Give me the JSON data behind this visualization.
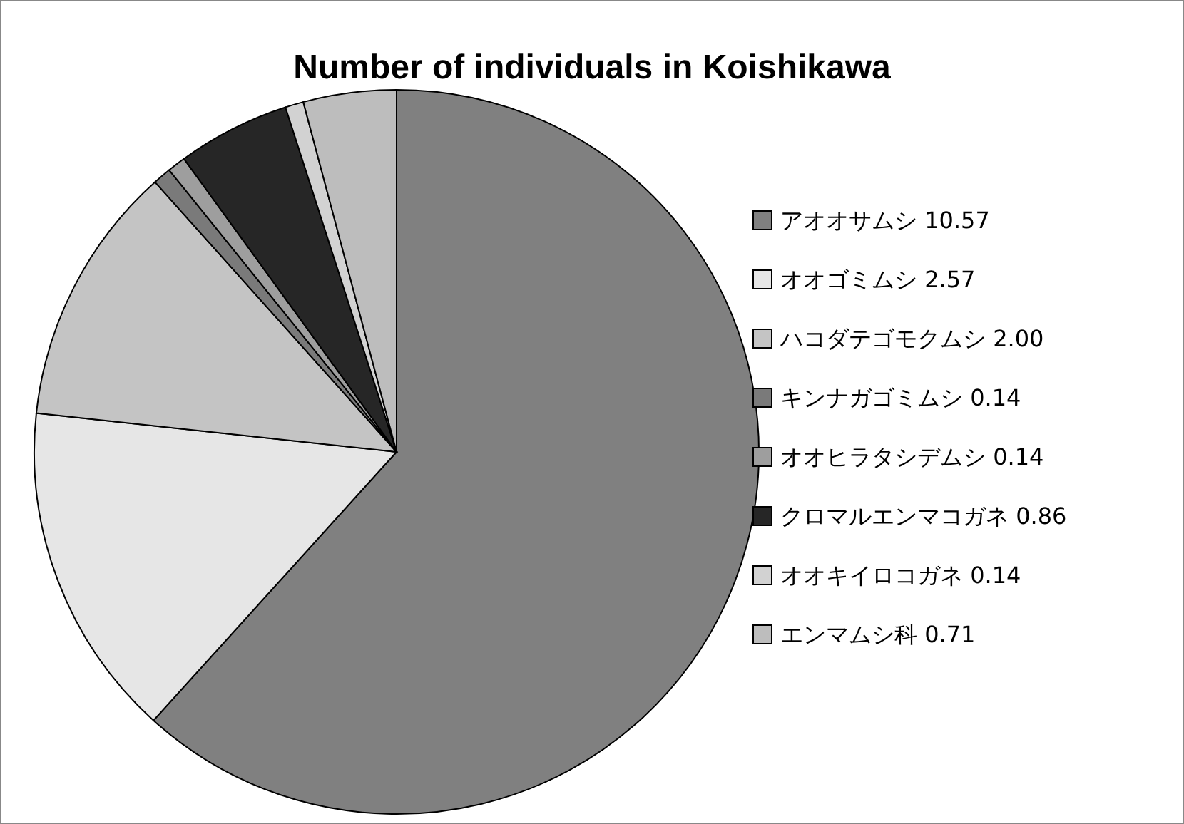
{
  "chart_data": {
    "type": "pie",
    "title": "Number of individuals in Koishikawa",
    "categories": [
      "アオオサムシ",
      "オオゴミムシ",
      "ハコダテゴモクムシ",
      "キンナガゴミムシ",
      "オオヒラタシデムシ",
      "クロマルエンマコガネ",
      "オオキイロコガネ",
      "エンマムシ科"
    ],
    "values": [
      10.57,
      2.57,
      2.0,
      0.14,
      0.14,
      0.86,
      0.14,
      0.71
    ],
    "value_labels": [
      "10.57",
      "2.57",
      "2.00",
      "0.14",
      "0.14",
      "0.86",
      "0.14",
      "0.71"
    ],
    "colors": [
      "#808080",
      "#e6e6e6",
      "#c4c4c4",
      "#7a7a7a",
      "#9e9e9e",
      "#262626",
      "#d2d2d2",
      "#bdbdbd"
    ],
    "legend": "right"
  }
}
